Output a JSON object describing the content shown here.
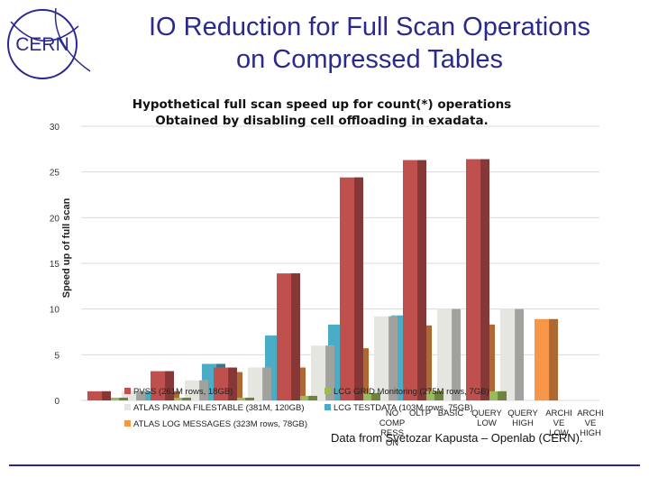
{
  "slide": {
    "title_line1": "IO Reduction for Full Scan Operations",
    "title_line2": "on Compressed Tables",
    "credit": "Data from Svetozar Kapusta – Openlab (CERN)."
  },
  "logo": {
    "text": "CERN",
    "color": "#2a2a8c"
  },
  "chart_data": {
    "type": "bar",
    "title_line1": "Hypothetical full scan speed up for count(*) operations",
    "title_line2": "Obtained by disabling cell offloading in exadata.",
    "ylabel": "Speed up of full scan",
    "ylim": [
      0,
      30
    ],
    "yticks": [
      0,
      5,
      10,
      15,
      20,
      25,
      30
    ],
    "grid": true,
    "legend_position": "bottom",
    "categories": [
      "NO COMPRESSION",
      "OLTP",
      "BASIC",
      "QUERY LOW",
      "QUERY HIGH",
      "ARCHIVE LOW",
      "ARCHIVE HIGH"
    ],
    "category_labels_printed": [
      [
        "NO",
        "COMP",
        "RESS",
        "ON"
      ],
      [
        "OLTP"
      ],
      [
        "BASIC"
      ],
      [
        "QUERY",
        "LOW"
      ],
      [
        "QUERY",
        "HIGH"
      ],
      [
        "ARCHI",
        "VE",
        "LOW"
      ],
      [
        "ARCHI",
        "VE",
        "HIGH"
      ]
    ],
    "series": [
      {
        "name": "PVSS (261M rows, 18GB)",
        "color": "#c0504d",
        "values": [
          1.0,
          3.2,
          3.6,
          13.9,
          24.4,
          26.3,
          26.4
        ]
      },
      {
        "name": "LCG GRID Monitoring (275M rows, 7GB)",
        "color": "#9bbb59",
        "values": [
          0.3,
          0.3,
          0.3,
          0.5,
          0.8,
          1.0,
          1.0
        ]
      },
      {
        "name": "ATLAS PANDA FILESTABLE (381M, 120GB)",
        "color": "#e6e6e0",
        "values": [
          1.0,
          2.2,
          3.6,
          6.0,
          9.2,
          10.0,
          10.0
        ]
      },
      {
        "name": "LCG TESTDATA (103M rows, 75GB)",
        "color": "#4bacc6",
        "values": [
          1.0,
          4.0,
          7.1,
          8.3,
          9.3,
          0.0,
          0.0
        ]
      },
      {
        "name": "ATLAS LOG MESSAGES (323M rows, 78GB)",
        "color": "#f79646",
        "values": [
          1.0,
          3.1,
          3.6,
          5.7,
          8.2,
          8.3,
          8.9
        ]
      }
    ]
  }
}
